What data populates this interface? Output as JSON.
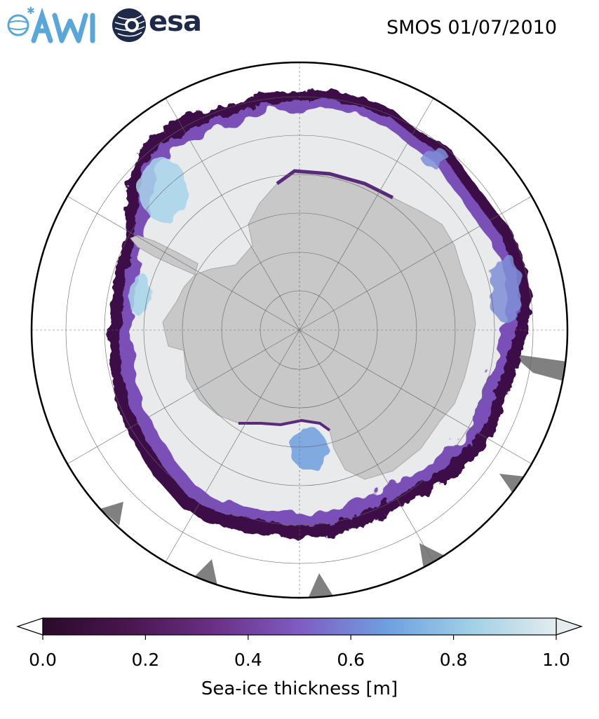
{
  "header": {
    "logo_left": "AWI",
    "logo_right": "esa",
    "title": "SMOS 01/07/2010"
  },
  "map": {
    "projection": "south-polar-stereographic",
    "land_color": "#c8c8c8",
    "ocean_color": "#ffffff",
    "nodata_color": "#808080",
    "thick_ice_color": "#e8eaec"
  },
  "colorbar": {
    "label": "Sea-ice thickness [m]",
    "min": 0.0,
    "max": 1.0,
    "extend": "both",
    "ticks": [
      "0.0",
      "0.2",
      "0.4",
      "0.6",
      "0.8",
      "1.0"
    ],
    "colormap": [
      "#2a0a2a",
      "#4a1650",
      "#6a2e84",
      "#7f5cc4",
      "#6f9fe0",
      "#9fcfe6",
      "#e4ecee"
    ]
  }
}
